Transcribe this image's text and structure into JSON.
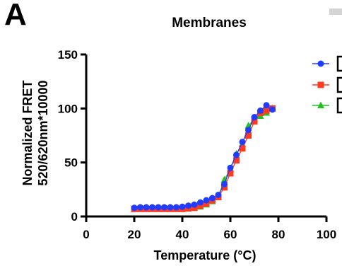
{
  "panel_letter": "A",
  "chart_data": {
    "type": "scatter",
    "title": "Membranes",
    "xlabel": "Temperature (°C)",
    "ylabel": [
      "Normalized FRET",
      "520/620nm*10000"
    ],
    "xlim": [
      0,
      100
    ],
    "ylim": [
      0,
      150
    ],
    "x_ticks": [
      0,
      20,
      40,
      60,
      80,
      100
    ],
    "y_ticks": [
      0,
      50,
      100,
      150
    ],
    "grid": false,
    "legend_position": "right",
    "series": [
      {
        "color": "#1f3cff",
        "marker": "circle",
        "x": [
          20,
          22.5,
          25,
          27.5,
          30,
          32.5,
          35,
          37.5,
          40,
          42.5,
          45,
          47.5,
          50,
          52.5,
          55,
          57.5,
          60,
          62.5,
          65,
          67.5,
          70,
          72.5,
          75,
          77.5
        ],
        "y": [
          8,
          8.5,
          8.5,
          8.5,
          8.5,
          8.5,
          8.5,
          8.5,
          9,
          10,
          11,
          13,
          15,
          17,
          20,
          30,
          45,
          57,
          69,
          80,
          92,
          98,
          103,
          99
        ]
      },
      {
        "color": "#ff3b1f",
        "marker": "square",
        "x": [
          20,
          22.5,
          25,
          27.5,
          30,
          32.5,
          35,
          37.5,
          40,
          42.5,
          45,
          47.5,
          50,
          52.5,
          55,
          57.5,
          60,
          62.5,
          65,
          67.5,
          70,
          72.5,
          75,
          77.5
        ],
        "y": [
          7,
          7,
          7,
          7,
          7,
          7,
          7,
          7,
          7,
          7.5,
          8,
          10,
          12,
          15,
          18,
          27,
          40,
          52,
          63,
          75,
          88,
          96,
          98,
          100
        ]
      },
      {
        "color": "#22c21e",
        "marker": "triangle",
        "x": [
          20,
          22.5,
          25,
          27.5,
          30,
          32.5,
          35,
          37.5,
          40,
          42.5,
          45,
          47.5,
          50,
          52.5,
          55,
          57.5,
          60,
          62.5,
          65,
          67.5,
          70,
          72.5,
          75,
          77.5
        ],
        "y": [
          7,
          7,
          7,
          7,
          7,
          7,
          7,
          7,
          7,
          7.5,
          8,
          9,
          11,
          14,
          18,
          34,
          44,
          58,
          67,
          84,
          90,
          93,
          96,
          100
        ]
      }
    ]
  },
  "decor": {
    "top_right_mark_color": "#d4d4d4"
  }
}
